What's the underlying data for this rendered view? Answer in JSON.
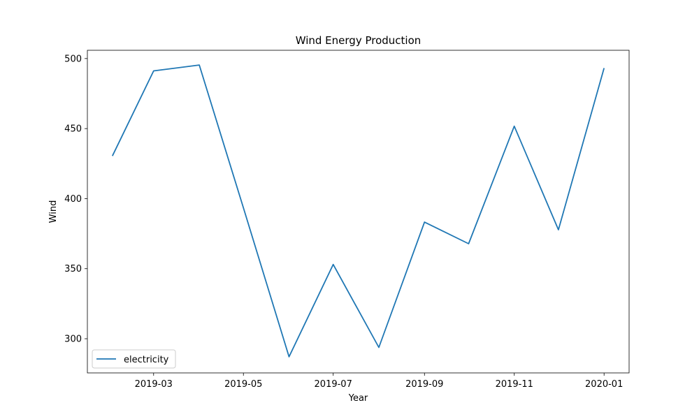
{
  "chart_data": {
    "type": "line",
    "title": "Wind Energy Production",
    "xlabel": "Year",
    "ylabel": "Wind",
    "x_ticks": [
      "2019-03",
      "2019-05",
      "2019-07",
      "2019-09",
      "2019-11",
      "2020-01"
    ],
    "x_tick_days": [
      28,
      89,
      150,
      212,
      273,
      334
    ],
    "xlim_days": [
      -17,
      351
    ],
    "y_ticks": [
      "300",
      "350",
      "400",
      "450",
      "500"
    ],
    "y_tick_values": [
      300,
      350,
      400,
      450,
      500
    ],
    "ylim": [
      275.6,
      505.9
    ],
    "legend": {
      "position": "lower-left"
    },
    "series": [
      {
        "name": "electricity",
        "color": "#1f77b4",
        "x": [
          "2019-01-31",
          "2019-02-28",
          "2019-03-31",
          "2019-04-30",
          "2019-05-31",
          "2019-06-30",
          "2019-07-31",
          "2019-08-31",
          "2019-09-30",
          "2019-10-31",
          "2019-11-30",
          "2019-12-31"
        ],
        "x_days": [
          0,
          28,
          59,
          89,
          120,
          150,
          181,
          212,
          242,
          273,
          303,
          334
        ],
        "values": [
          430.5,
          491.2,
          495.4,
          393.5,
          287.1,
          353.0,
          293.8,
          383.2,
          367.8,
          451.7,
          377.8,
          493.2
        ]
      }
    ]
  }
}
